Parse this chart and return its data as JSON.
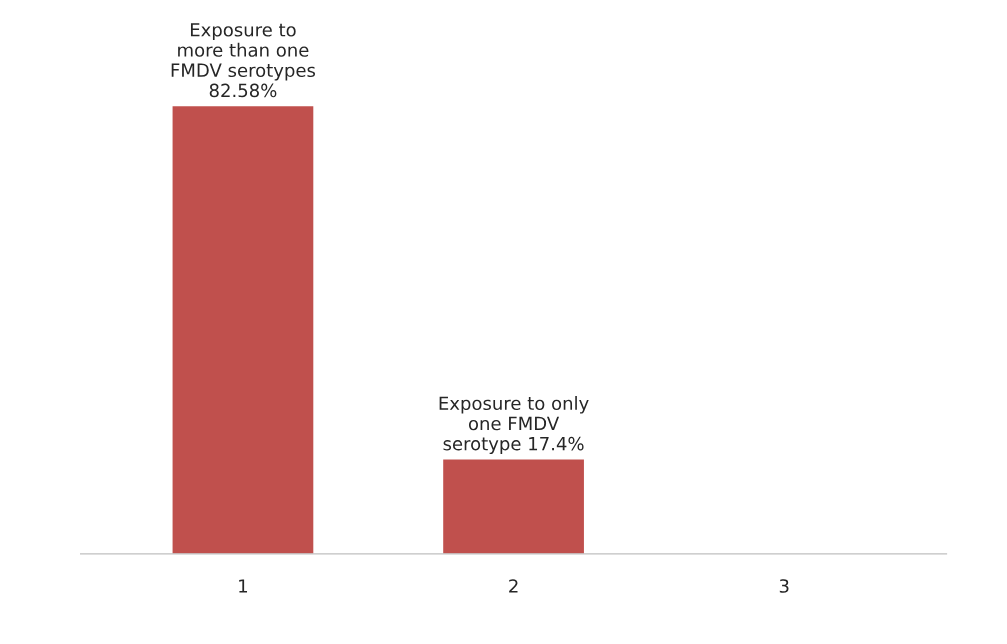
{
  "chart_data": {
    "type": "bar",
    "categories": [
      "1",
      "2",
      "3"
    ],
    "values": [
      82.58,
      17.4,
      null
    ],
    "color": "#c0504d",
    "value_labels": [
      "Exposure to\nmore than one\nFMDV serotypes\n82.58%",
      "Exposure to only\none FMDV\nserotype 17.4%",
      null
    ],
    "grid": false,
    "legend": false
  }
}
